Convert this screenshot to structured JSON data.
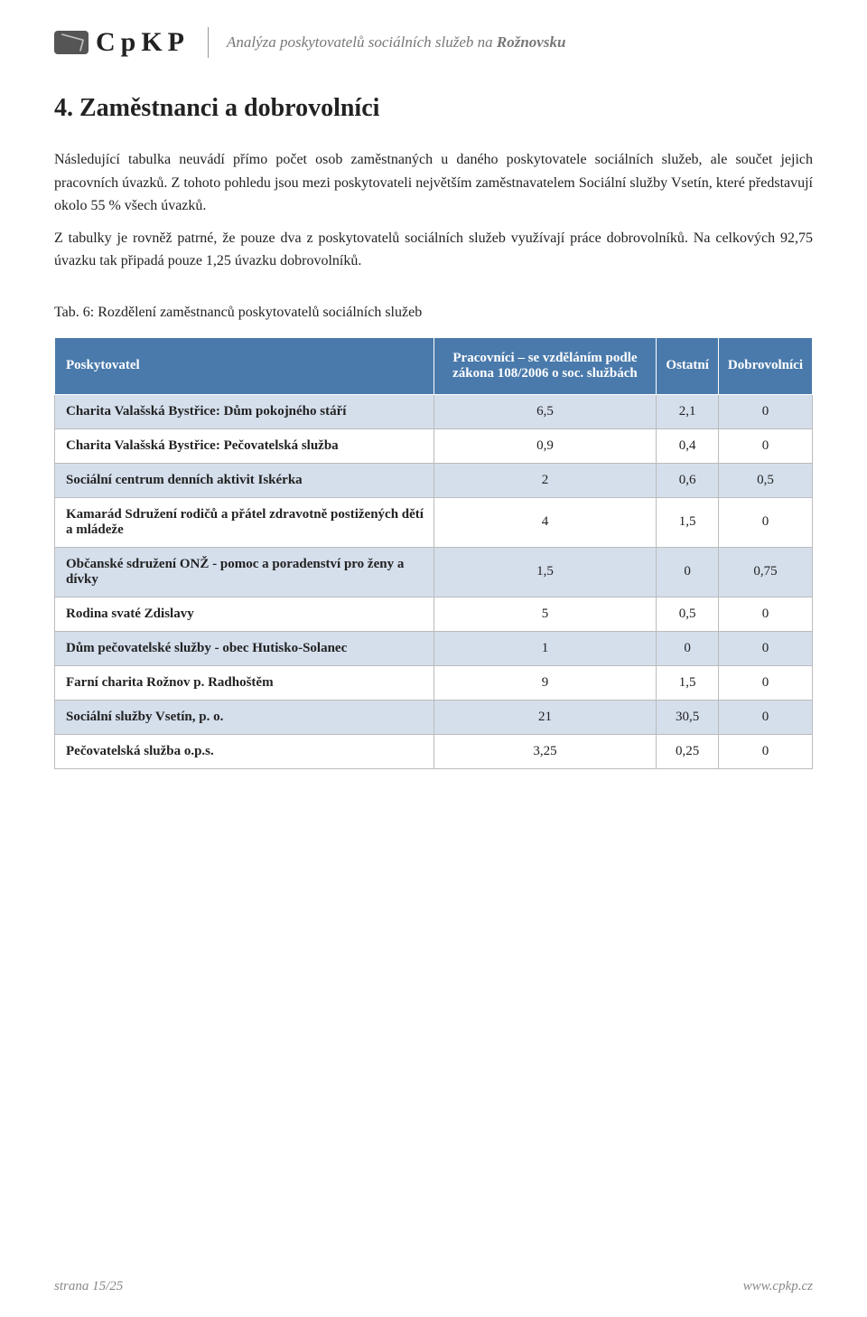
{
  "header": {
    "logo_text": "CpKP",
    "title_prefix": "Analýza poskytovatelů sociálních služeb na ",
    "title_bold": "Rožnovsku"
  },
  "section": {
    "heading": "4. Zaměstnanci a dobrovolníci",
    "paragraph1": "Následující tabulka neuvádí přímo počet osob zaměstnaných u daného poskytovatele sociálních služeb, ale součet jejich pracovních úvazků. Z tohoto pohledu jsou mezi poskytovateli největším zaměstnavatelem Sociální služby Vsetín, které představují okolo 55 % všech úvazků.",
    "paragraph2": "Z tabulky je rovněž patrné, že pouze dva z poskytovatelů sociálních služeb využívají práce dobrovolníků. Na celkových 92,75 úvazku tak připadá pouze 1,25 úvazku dobrovolníků."
  },
  "table": {
    "caption": "Tab. 6: Rozdělení zaměstnanců poskytovatelů sociálních služeb",
    "columns": [
      "Poskytovatel",
      "Pracovníci – se vzděláním podle zákona 108/2006 o soc. službách",
      "Ostatní",
      "Dobrovolníci"
    ],
    "rows": [
      {
        "cells": [
          "Charita Valašská Bystřice: Dům pokojného stáří",
          "6,5",
          "2,1",
          "0"
        ]
      },
      {
        "cells": [
          "Charita Valašská Bystřice: Pečovatelská služba",
          "0,9",
          "0,4",
          "0"
        ]
      },
      {
        "cells": [
          "Sociální centrum denních aktivit Iskérka",
          "2",
          "0,6",
          "0,5"
        ]
      },
      {
        "cells": [
          "Kamarád Sdružení rodičů a přátel zdravotně postižených dětí a mládeže",
          "4",
          "1,5",
          "0"
        ]
      },
      {
        "cells": [
          "Občanské sdružení ONŽ - pomoc a poradenství pro ženy a dívky",
          "1,5",
          "0",
          "0,75"
        ]
      },
      {
        "cells": [
          "Rodina svaté Zdislavy",
          "5",
          "0,5",
          "0"
        ]
      },
      {
        "cells": [
          "Dům pečovatelské služby - obec Hutisko-Solanec",
          "1",
          "0",
          "0"
        ]
      },
      {
        "cells": [
          "Farní charita Rožnov p. Radhoštěm",
          "9",
          "1,5",
          "0"
        ]
      },
      {
        "cells": [
          "Sociální služby Vsetín, p. o.",
          "21",
          "30,5",
          "0"
        ]
      },
      {
        "cells": [
          "Pečovatelská služba o.p.s.",
          "3,25",
          "0,25",
          "0"
        ]
      }
    ],
    "header_bg": "#4a7aab",
    "row_even_bg": "#d5dfec",
    "row_odd_bg": "#ffffff"
  },
  "footer": {
    "page": "strana 15/25",
    "url": "www.cpkp.cz"
  }
}
